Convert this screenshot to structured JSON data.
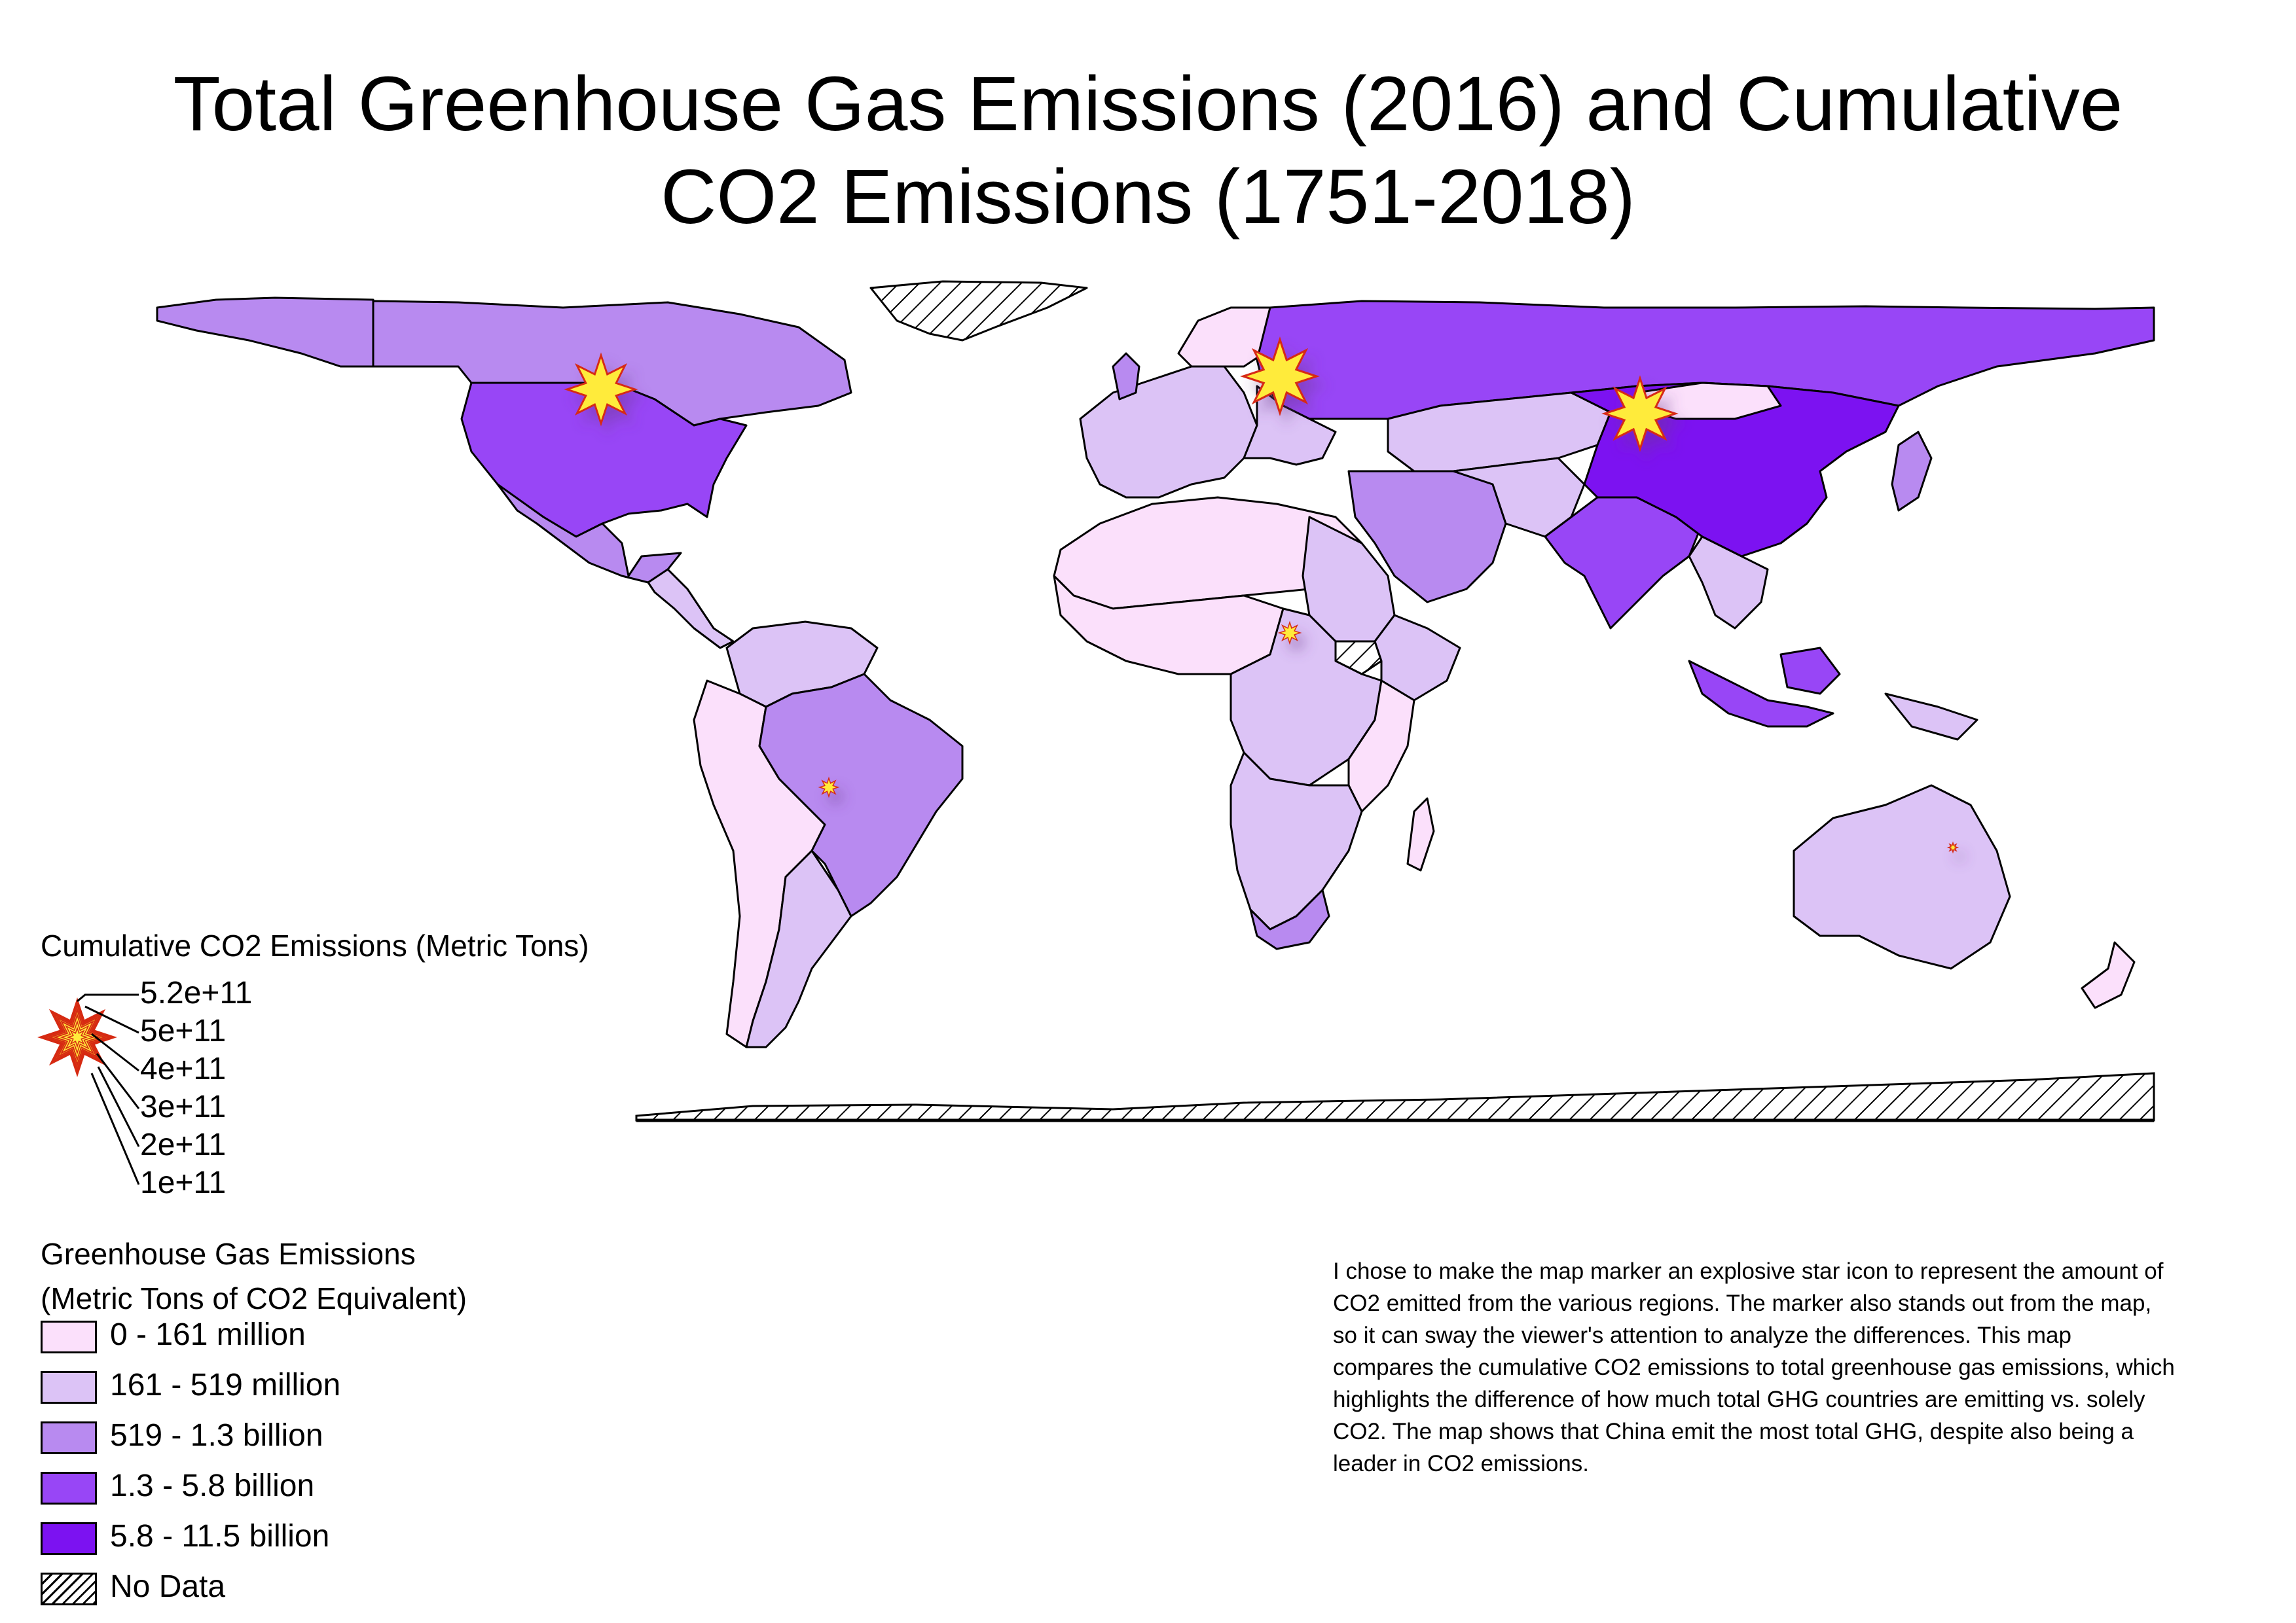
{
  "map": {
    "title_line1": "Total Greenhouse Gas Emissions (2016) and Cumulative",
    "title_line2": "CO2 Emissions (1751-2018)",
    "ghg_legend": {
      "title_line1": "Greenhouse Gas Emissions",
      "title_line2": "(Metric Tons of CO2 Equivalent)",
      "classes": [
        {
          "label": "0 - 161 million",
          "color": "#fbe0fb"
        },
        {
          "label": "161 - 519 million",
          "color": "#dcc3f6"
        },
        {
          "label": "519 - 1.3 billion",
          "color": "#b88af0"
        },
        {
          "label": "1.3 - 5.8 billion",
          "color": "#9846f6"
        },
        {
          "label": "5.8 - 11.5 billion",
          "color": "#7c12f1"
        },
        {
          "label": "No Data",
          "color": "hatched"
        }
      ]
    },
    "co2_legend": {
      "title": "Cumulative CO2 Emissions (Metric Tons)",
      "values": [
        "5.2e+11",
        "5e+11",
        "4e+11",
        "3e+11",
        "2e+11",
        "1e+11"
      ],
      "symbol": "explosion-star-icon"
    },
    "co2_markers": [
      {
        "region": "United States",
        "size": "large"
      },
      {
        "region": "Europe / Russia",
        "size": "large"
      },
      {
        "region": "China",
        "size": "large"
      },
      {
        "region": "Brazil",
        "size": "small"
      },
      {
        "region": "Central Africa",
        "size": "small"
      },
      {
        "region": "Australia",
        "size": "tiny"
      }
    ],
    "note": "I chose to make the map marker an explosive star icon to represent the amount of CO2 emitted from the various regions. The marker also stands out from the map, so it can sway the viewer's attention to analyze the differences. This map compares the cumulative CO2 emissions to total greenhouse gas emissions, which highlights the difference of how much total GHG countries are emitting vs. solely CO2. The map shows that China emit the most total GHG, despite also being a leader in CO2 emissions.",
    "colors": {
      "outline": "#000000",
      "star_fill": "#ffeb3b",
      "star_stroke": "#d62a12"
    }
  }
}
